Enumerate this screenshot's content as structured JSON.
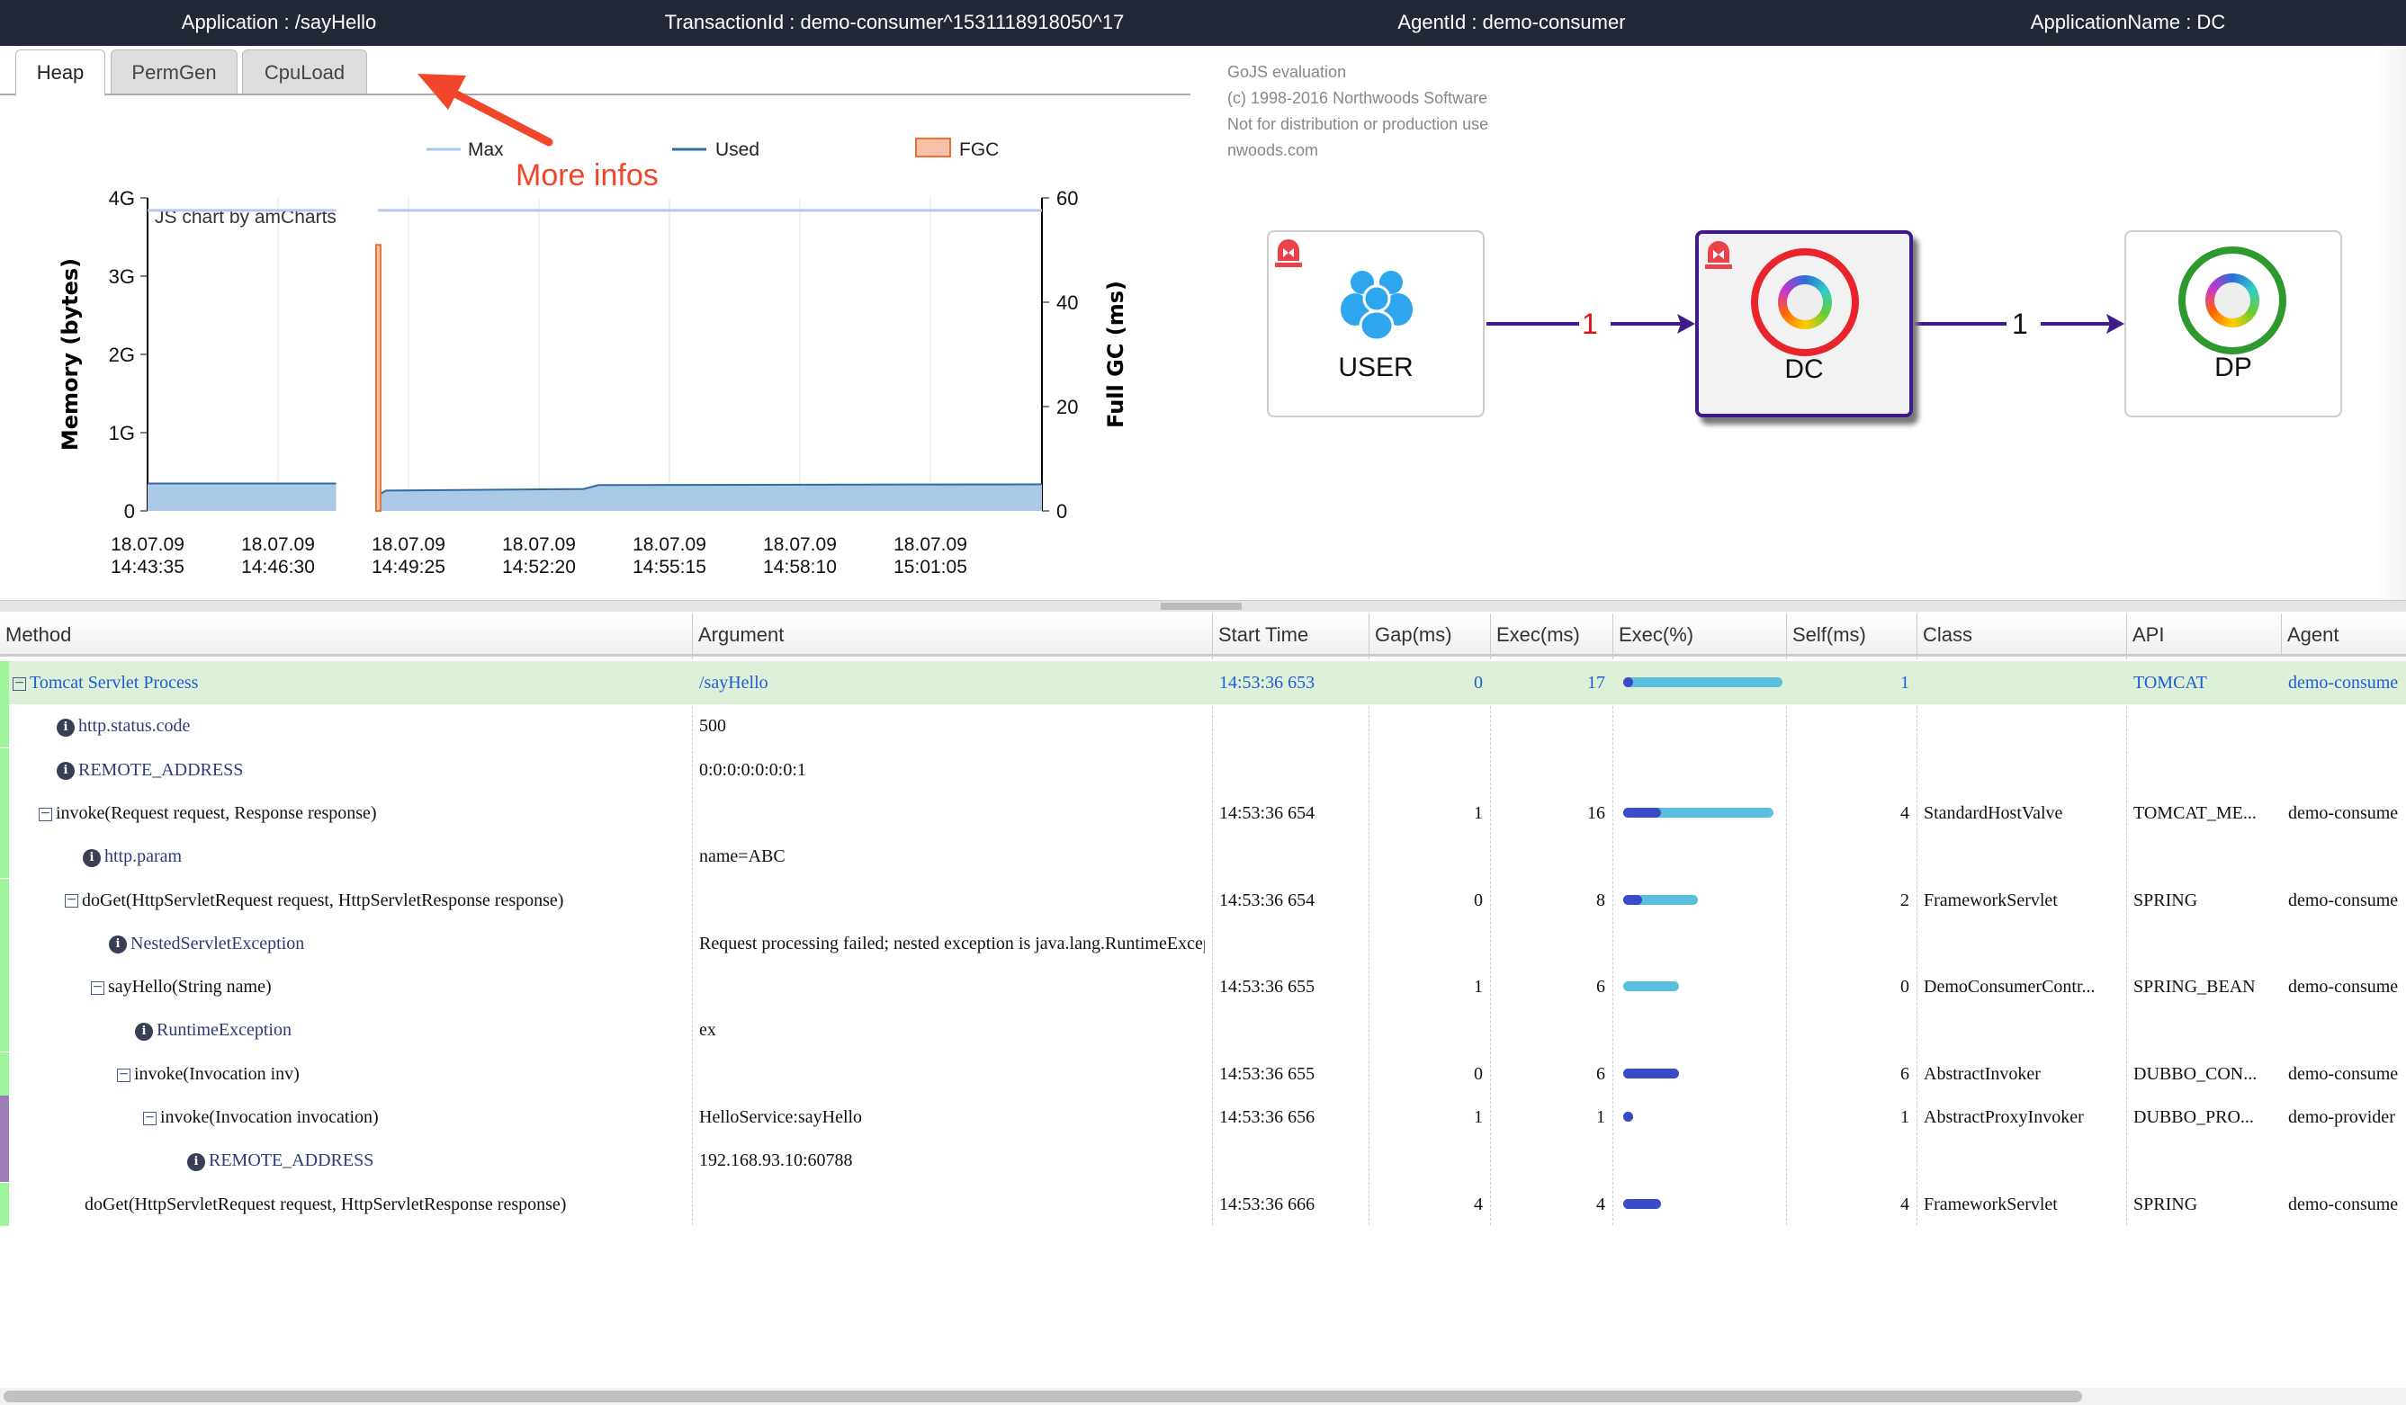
{
  "header": {
    "application": "Application : /sayHello",
    "transaction": "TransactionId : demo-consumer^1531118918050^17",
    "agent": "AgentId : demo-consumer",
    "app_name": "ApplicationName : DC"
  },
  "tabs": [
    {
      "label": "Heap",
      "active": true
    },
    {
      "label": "PermGen"
    },
    {
      "label": "CpuLoad"
    }
  ],
  "annotation": {
    "text": "More infos",
    "color": "#f2462c"
  },
  "chart_data": {
    "type": "line",
    "watermark": "JS chart by amCharts",
    "legend": [
      {
        "name": "Max",
        "color": "#a9c4e4"
      },
      {
        "name": "Used",
        "color": "#336b9e"
      },
      {
        "name": "FGC",
        "color": "#f4c2a8"
      }
    ],
    "legend_position": "top",
    "ylabel": "Memory (bytes)",
    "y2label": "Full GC (ms)",
    "yticks": [
      "0",
      "1G",
      "2G",
      "3G",
      "4G"
    ],
    "ylim": [
      0,
      4
    ],
    "y2ticks": [
      "0",
      "20",
      "40",
      "60"
    ],
    "y2lim": [
      0,
      60
    ],
    "xticks": [
      [
        "18.07.09",
        "14:43:35"
      ],
      [
        "18.07.09",
        "14:46:30"
      ],
      [
        "18.07.09",
        "14:49:25"
      ],
      [
        "18.07.09",
        "14:52:20"
      ],
      [
        "18.07.09",
        "14:55:15"
      ],
      [
        "18.07.09",
        "14:58:10"
      ],
      [
        "18.07.09",
        "15:01:05"
      ]
    ],
    "xlim": [
      "14:43:35",
      "15:03:35"
    ],
    "grid": true,
    "series": [
      {
        "name": "Max",
        "segments": [
          [
            [
              "14:43:35",
              3.84
            ],
            [
              "14:47:48",
              3.84
            ]
          ],
          [
            [
              "14:48:44",
              3.84
            ],
            [
              "15:03:35",
              3.84
            ]
          ]
        ]
      },
      {
        "name": "Used",
        "segments": [
          [
            [
              "14:43:35",
              0.35
            ],
            [
              "14:47:48",
              0.35
            ]
          ],
          [
            [
              "14:48:44",
              0.2
            ],
            [
              "14:48:55",
              0.26
            ],
            [
              "14:53:20",
              0.28
            ],
            [
              "14:53:40",
              0.33
            ],
            [
              "15:03:35",
              0.34
            ]
          ]
        ]
      },
      {
        "name": "FGC",
        "axis": "right",
        "bars": [
          [
            "14:48:44",
            51
          ]
        ]
      }
    ]
  },
  "diagram": {
    "watermark": [
      "GoJS evaluation",
      "(c) 1998-2016 Northwoods Software",
      "Not for distribution or production use",
      "nwoods.com"
    ],
    "nodes": [
      {
        "label": "USER",
        "icon": "users-icon",
        "alarm": true
      },
      {
        "label": "DC",
        "icon": "dubbo-icon",
        "ring": "#e8242c",
        "alarm": true,
        "selected": true
      },
      {
        "label": "DP",
        "icon": "dubbo-icon",
        "ring": "#2e9a2e"
      }
    ],
    "edges": [
      {
        "label": "1",
        "color": "#e01010"
      },
      {
        "label": "1",
        "color": "#111111"
      }
    ]
  },
  "table": {
    "columns": [
      "Method",
      "Argument",
      "Start Time",
      "Gap(ms)",
      "Exec(ms)",
      "Exec(%)",
      "Self(ms)",
      "Class",
      "API",
      "Agent"
    ],
    "rows": [
      {
        "level": 0,
        "kind": "toggle",
        "method": "Tomcat Servlet Process",
        "argument": "/sayHello",
        "start": "14:53:36 653",
        "gap": "0",
        "exec": "17",
        "self": "1",
        "class": "",
        "api": "TOMCAT",
        "agent": "demo-consumer",
        "highlight": true,
        "strip": "#9ef59e"
      },
      {
        "level": 1,
        "kind": "info",
        "method": "http.status.code",
        "argument": "500",
        "strip": "#9ef59e"
      },
      {
        "level": 1,
        "kind": "info",
        "method": "REMOTE_ADDRESS",
        "argument": "0:0:0:0:0:0:0:1",
        "strip": "#9ef59e"
      },
      {
        "level": 1,
        "kind": "toggle",
        "method": "invoke(Request request, Response response)",
        "argument": "",
        "start": "14:53:36 654",
        "gap": "1",
        "exec": "16",
        "self": "4",
        "class": "StandardHostValve",
        "api": "TOMCAT_ME...",
        "agent": "demo-consumer",
        "strip": "#9ef59e"
      },
      {
        "level": 2,
        "kind": "info",
        "method": "http.param",
        "argument": "name=ABC",
        "strip": "#9ef59e"
      },
      {
        "level": 2,
        "kind": "toggle",
        "method": "doGet(HttpServletRequest request, HttpServletResponse response)",
        "argument": "",
        "start": "14:53:36 654",
        "gap": "0",
        "exec": "8",
        "self": "2",
        "class": "FrameworkServlet",
        "api": "SPRING",
        "agent": "demo-consumer",
        "strip": "#9ef59e"
      },
      {
        "level": 3,
        "kind": "info",
        "method": "NestedServletException",
        "argument": "Request processing failed; nested exception is java.lang.RuntimeException",
        "strip": "#9ef59e"
      },
      {
        "level": 3,
        "kind": "toggle",
        "method": "sayHello(String name)",
        "argument": "",
        "start": "14:53:36 655",
        "gap": "1",
        "exec": "6",
        "self": "0",
        "class": "DemoConsumerContr...",
        "api": "SPRING_BEAN",
        "agent": "demo-consumer",
        "strip": "#9ef59e"
      },
      {
        "level": 4,
        "kind": "info",
        "method": "RuntimeException",
        "argument": "ex",
        "strip": "#9ef59e"
      },
      {
        "level": 4,
        "kind": "toggle",
        "method": "invoke(Invocation inv)",
        "argument": "",
        "start": "14:53:36 655",
        "gap": "0",
        "exec": "6",
        "self": "6",
        "class": "AbstractInvoker",
        "api": "DUBBO_CON...",
        "agent": "demo-consumer",
        "strip": "#9ef59e"
      },
      {
        "level": 5,
        "kind": "toggle",
        "method": "invoke(Invocation invocation)",
        "argument": "HelloService:sayHello",
        "start": "14:53:36 656",
        "gap": "1",
        "exec": "1",
        "self": "1",
        "class": "AbstractProxyInvoker",
        "api": "DUBBO_PRO...",
        "agent": "demo-provider",
        "strip": "#9b7db8"
      },
      {
        "level": 6,
        "kind": "info",
        "method": "REMOTE_ADDRESS",
        "argument": "192.168.93.10:60788",
        "strip": "#9b7db8"
      },
      {
        "level": 2,
        "kind": "none",
        "method": "doGet(HttpServletRequest request, HttpServletResponse response)",
        "argument": "",
        "start": "14:53:36 666",
        "gap": "4",
        "exec": "4",
        "self": "4",
        "class": "FrameworkServlet",
        "api": "SPRING",
        "agent": "demo-consumer",
        "strip": "#9ef59e"
      }
    ]
  }
}
